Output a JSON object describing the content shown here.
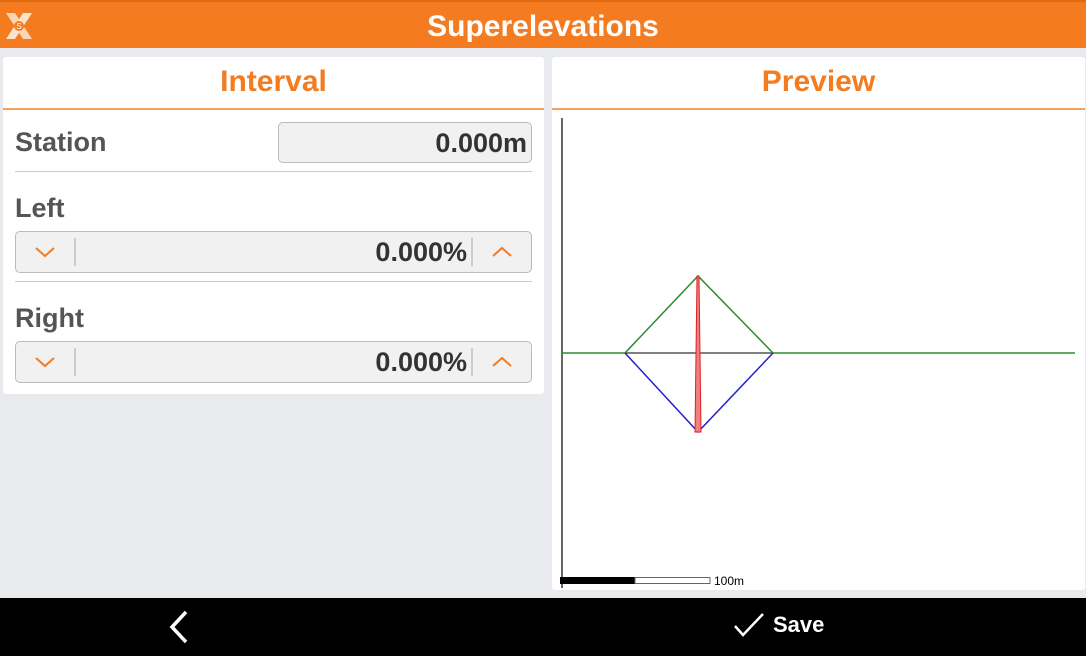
{
  "header": {
    "title": "Superelevations",
    "logo": "app-logo"
  },
  "interval": {
    "title": "Interval",
    "station": {
      "label": "Station",
      "value": "0.000m"
    },
    "left": {
      "label": "Left",
      "value": "0.000%"
    },
    "right": {
      "label": "Right",
      "value": "0.000%"
    }
  },
  "preview": {
    "title": "Preview",
    "scale_label": "100m"
  },
  "footer": {
    "back_icon": "chevron-left-icon",
    "save_label": "Save",
    "save_icon": "check-icon"
  },
  "colors": {
    "accent": "#f47b20",
    "left_line": "#2e8b2e",
    "right_line": "#2222cc",
    "axis_line": "#e02020"
  }
}
